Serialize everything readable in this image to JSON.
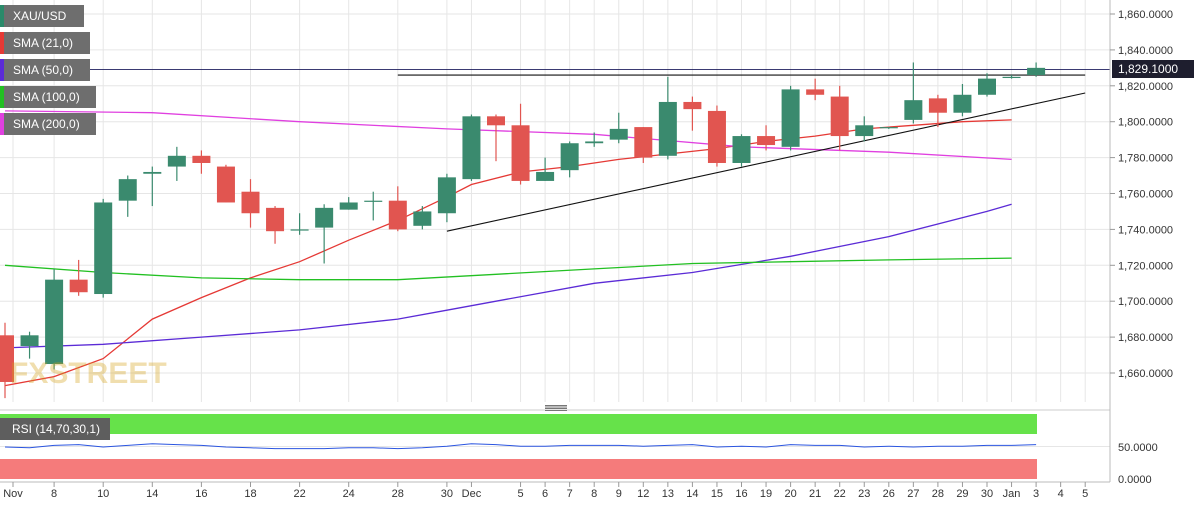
{
  "chart_data": {
    "type": "candlestick",
    "symbol": "XAU/USD",
    "price_axis": {
      "ylim": [
        1640,
        1870
      ],
      "ticks": [
        "1,860.0000",
        "1,840.0000",
        "1,820.0000",
        "1,800.0000",
        "1,780.0000",
        "1,760.0000",
        "1,740.0000",
        "1,720.0000",
        "1,700.0000",
        "1,680.0000",
        "1,660.0000"
      ],
      "tick_values": [
        1860,
        1840,
        1820,
        1800,
        1780,
        1760,
        1740,
        1720,
        1700,
        1680,
        1660
      ]
    },
    "current_price": {
      "value": 1829.1,
      "label": "1,829.1000"
    },
    "x_labels": [
      "Nov",
      "8",
      "10",
      "14",
      "16",
      "18",
      "22",
      "24",
      "28",
      "30",
      "Dec",
      "5",
      "6",
      "7",
      "8",
      "9",
      "12",
      "13",
      "14",
      "15",
      "16",
      "19",
      "20",
      "21",
      "22",
      "23",
      "26",
      "27",
      "28",
      "29",
      "30",
      "Jan",
      "3",
      "4",
      "5"
    ],
    "candles": [
      {
        "o": 1681,
        "h": 1688,
        "l": 1646,
        "c": 1655
      },
      {
        "o": 1675,
        "h": 1683,
        "l": 1668,
        "c": 1681
      },
      {
        "o": 1665,
        "h": 1718,
        "l": 1662,
        "c": 1712
      },
      {
        "o": 1712,
        "h": 1723,
        "l": 1703,
        "c": 1705
      },
      {
        "o": 1704,
        "h": 1757,
        "l": 1702,
        "c": 1755
      },
      {
        "o": 1756,
        "h": 1770,
        "l": 1747,
        "c": 1768
      },
      {
        "o": 1771,
        "h": 1775,
        "l": 1753,
        "c": 1772
      },
      {
        "o": 1775,
        "h": 1786,
        "l": 1767,
        "c": 1781
      },
      {
        "o": 1781,
        "h": 1784,
        "l": 1771,
        "c": 1777
      },
      {
        "o": 1775,
        "h": 1776,
        "l": 1755,
        "c": 1755
      },
      {
        "o": 1761,
        "h": 1768,
        "l": 1741,
        "c": 1749
      },
      {
        "o": 1752,
        "h": 1753,
        "l": 1732,
        "c": 1739
      },
      {
        "o": 1740,
        "h": 1749,
        "l": 1737,
        "c": 1740
      },
      {
        "o": 1741,
        "h": 1754,
        "l": 1721,
        "c": 1752
      },
      {
        "o": 1751,
        "h": 1758,
        "l": 1751,
        "c": 1755
      },
      {
        "o": 1756,
        "h": 1761,
        "l": 1745,
        "c": 1756
      },
      {
        "o": 1756,
        "h": 1764,
        "l": 1739,
        "c": 1740
      },
      {
        "o": 1742,
        "h": 1753,
        "l": 1740,
        "c": 1750
      },
      {
        "o": 1749,
        "h": 1771,
        "l": 1744,
        "c": 1769
      },
      {
        "o": 1768,
        "h": 1804,
        "l": 1767,
        "c": 1803
      },
      {
        "o": 1803,
        "h": 1804,
        "l": 1778,
        "c": 1798
      },
      {
        "o": 1798,
        "h": 1810,
        "l": 1765,
        "c": 1767
      },
      {
        "o": 1767,
        "h": 1780,
        "l": 1767,
        "c": 1772
      },
      {
        "o": 1773,
        "h": 1789,
        "l": 1769,
        "c": 1788
      },
      {
        "o": 1788,
        "h": 1794,
        "l": 1786,
        "c": 1789
      },
      {
        "o": 1790,
        "h": 1805,
        "l": 1788,
        "c": 1796
      },
      {
        "o": 1797,
        "h": 1797,
        "l": 1777,
        "c": 1780
      },
      {
        "o": 1781,
        "h": 1825,
        "l": 1779,
        "c": 1811
      },
      {
        "o": 1811,
        "h": 1814,
        "l": 1795,
        "c": 1807
      },
      {
        "o": 1806,
        "h": 1809,
        "l": 1775,
        "c": 1777
      },
      {
        "o": 1777,
        "h": 1793,
        "l": 1775,
        "c": 1792
      },
      {
        "o": 1792,
        "h": 1798,
        "l": 1784,
        "c": 1787
      },
      {
        "o": 1786,
        "h": 1820,
        "l": 1784,
        "c": 1818
      },
      {
        "o": 1818,
        "h": 1824,
        "l": 1812,
        "c": 1815
      },
      {
        "o": 1814,
        "h": 1820,
        "l": 1784,
        "c": 1792
      },
      {
        "o": 1792,
        "h": 1803,
        "l": 1789,
        "c": 1798
      },
      {
        "o": 1797,
        "h": 1797,
        "l": 1796,
        "c": 1797
      },
      {
        "o": 1801,
        "h": 1833,
        "l": 1799,
        "c": 1812
      },
      {
        "o": 1813,
        "h": 1815,
        "l": 1797,
        "c": 1805
      },
      {
        "o": 1805,
        "h": 1821,
        "l": 1803,
        "c": 1815
      },
      {
        "o": 1815,
        "h": 1827,
        "l": 1814,
        "c": 1824
      },
      {
        "o": 1825,
        "h": 1826,
        "l": 1824,
        "c": 1825
      },
      {
        "o": 1826,
        "h": 1833,
        "l": 1825,
        "c": 1830
      }
    ],
    "sma_lines": [
      {
        "name": "SMA (21,0)",
        "color": "#e53935",
        "values": [
          [
            0,
            1653
          ],
          [
            2,
            1658
          ],
          [
            4,
            1668
          ],
          [
            6,
            1690
          ],
          [
            8,
            1702
          ],
          [
            10,
            1713
          ],
          [
            12,
            1722
          ],
          [
            14,
            1734
          ],
          [
            16,
            1745
          ],
          [
            18,
            1758
          ],
          [
            19,
            1765
          ],
          [
            21,
            1772
          ],
          [
            23,
            1775
          ],
          [
            25,
            1779
          ],
          [
            27,
            1782
          ],
          [
            29,
            1785
          ],
          [
            31,
            1789
          ],
          [
            33,
            1792
          ],
          [
            35,
            1796
          ],
          [
            37,
            1798
          ],
          [
            39,
            1800
          ],
          [
            41,
            1801
          ]
        ]
      },
      {
        "name": "SMA (50,0)",
        "color": "#5b2bd6",
        "values": [
          [
            0,
            1674
          ],
          [
            4,
            1676
          ],
          [
            8,
            1680
          ],
          [
            12,
            1684
          ],
          [
            16,
            1690
          ],
          [
            18,
            1695
          ],
          [
            20,
            1700
          ],
          [
            24,
            1710
          ],
          [
            28,
            1716
          ],
          [
            32,
            1725
          ],
          [
            36,
            1736
          ],
          [
            40,
            1750
          ],
          [
            41,
            1754
          ]
        ]
      },
      {
        "name": "SMA (100,0)",
        "color": "#22c022",
        "values": [
          [
            0,
            1720
          ],
          [
            4,
            1716
          ],
          [
            8,
            1713
          ],
          [
            12,
            1712
          ],
          [
            16,
            1712
          ],
          [
            20,
            1715
          ],
          [
            24,
            1718
          ],
          [
            28,
            1721
          ],
          [
            32,
            1722
          ],
          [
            36,
            1723
          ],
          [
            41,
            1724
          ]
        ]
      },
      {
        "name": "SMA (200,0)",
        "color": "#e040e0",
        "values": [
          [
            0,
            1806
          ],
          [
            6,
            1805
          ],
          [
            12,
            1800
          ],
          [
            18,
            1796
          ],
          [
            24,
            1793
          ],
          [
            30,
            1786
          ],
          [
            36,
            1783
          ],
          [
            41,
            1779
          ]
        ]
      }
    ],
    "trendlines": [
      {
        "name": "support",
        "points": [
          [
            18,
            1739
          ],
          [
            44,
            1816
          ]
        ]
      },
      {
        "name": "resistance",
        "points": [
          [
            16,
            1826
          ],
          [
            44,
            1826
          ]
        ]
      }
    ],
    "rsi": {
      "label": "RSI (14,70,30,1)",
      "ticks": [
        "50.0000",
        "0.0000"
      ],
      "tick_values": [
        50,
        0
      ],
      "values": [
        50,
        49,
        52,
        53,
        50,
        52,
        54,
        53,
        52,
        50,
        49,
        48,
        48,
        48,
        49,
        49,
        48,
        49,
        51,
        54,
        53,
        51,
        51,
        52,
        52,
        52,
        51,
        52,
        53,
        50,
        51,
        50,
        53,
        52,
        52,
        50,
        51,
        50,
        51,
        51,
        52,
        52,
        53
      ]
    },
    "legend": [
      {
        "label": "XAU/USD",
        "color": "#2a8a6a"
      },
      {
        "label": "SMA (21,0)",
        "color": "#e53935"
      },
      {
        "label": "SMA (50,0)",
        "color": "#5b2bd6"
      },
      {
        "label": "SMA (100,0)",
        "color": "#22c022"
      },
      {
        "label": "SMA (200,0)",
        "color": "#e040e0"
      }
    ],
    "colors": {
      "up": "#3a8a6e",
      "down": "#e15550",
      "grid": "#e6e6e6",
      "axis_text": "#333333"
    }
  },
  "watermark": "FXSTREET"
}
